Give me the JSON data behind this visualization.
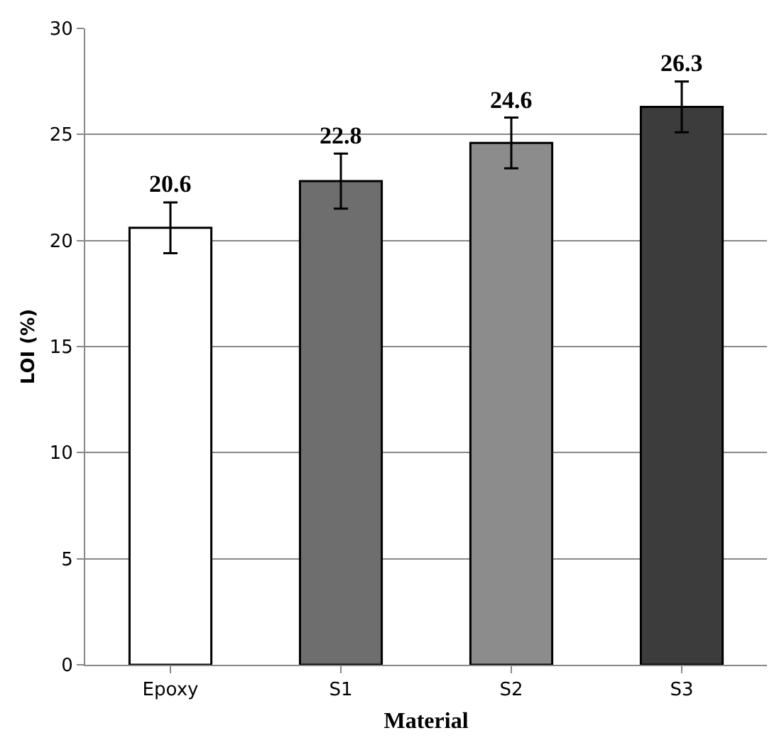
{
  "chart_data": {
    "type": "bar",
    "xlabel": "Material",
    "ylabel": "LOI (%)",
    "categories": [
      "Epoxy",
      "S1",
      "S2",
      "S3"
    ],
    "values": [
      20.6,
      22.8,
      24.6,
      26.3
    ],
    "errors": [
      1.2,
      1.3,
      1.2,
      1.2
    ],
    "colors": [
      "#ffffff",
      "#6e6e6e",
      "#8c8c8c",
      "#3c3c3c"
    ],
    "data_labels": true,
    "ylim": [
      0,
      30
    ],
    "yticks": [
      0,
      5,
      10,
      15,
      20,
      25,
      30
    ],
    "grid": "y"
  }
}
